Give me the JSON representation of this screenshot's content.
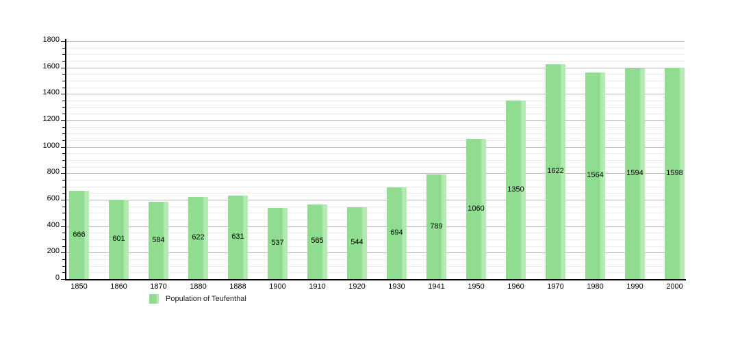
{
  "chart_data": {
    "type": "bar",
    "categories": [
      "1850",
      "1860",
      "1870",
      "1880",
      "1888",
      "1900",
      "1910",
      "1920",
      "1930",
      "1941",
      "1950",
      "1960",
      "1970",
      "1980",
      "1990",
      "2000"
    ],
    "values": [
      666,
      601,
      584,
      622,
      631,
      537,
      565,
      544,
      694,
      789,
      1060,
      1350,
      1622,
      1564,
      1594,
      1598
    ],
    "series": [
      {
        "name": "Population of Teufenthal",
        "values": [
          666,
          601,
          584,
          622,
          631,
          537,
          565,
          544,
          694,
          789,
          1060,
          1350,
          1622,
          1564,
          1594,
          1598
        ]
      }
    ],
    "ylim": [
      0,
      1800
    ],
    "y_major_step": 200,
    "y_minor_step": 50,
    "y_tick_labels": [
      "0",
      "200",
      "400",
      "600",
      "800",
      "1000",
      "1200",
      "1400",
      "1600",
      "1800"
    ],
    "grid": true,
    "value_labels_inside_bars": true,
    "legend_position": "bottom-left",
    "colors": {
      "bar_fill": "#90dc90",
      "bar_highlight": "#b3ebb3",
      "major_gridline": "#b8b8b8",
      "minor_gridline": "#ebebeb",
      "axis": "#000000",
      "text": "#000000"
    }
  },
  "legend": {
    "label": "Population of Teufenthal",
    "swatch_color": "#90dc90"
  }
}
